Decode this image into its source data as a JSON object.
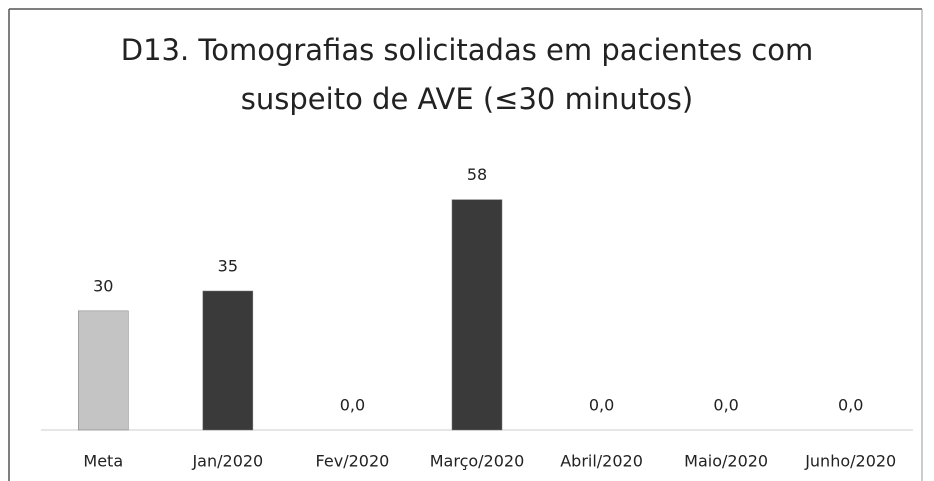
{
  "chart_data": {
    "type": "bar",
    "title": [
      "D13. Tomografias solicitadas em pacientes com",
      "suspeito de AVE (≤30 minutos)"
    ],
    "categories": [
      "Meta",
      "Jan/2020",
      "Fev/2020",
      "Março/2020",
      "Abril/2020",
      "Maio/2020",
      "Junho/2020"
    ],
    "values": [
      30,
      35,
      0,
      58,
      0,
      0,
      0
    ],
    "value_labels": [
      "30",
      "35",
      "0,0",
      "58",
      "0,0",
      "0,0",
      "0,0"
    ],
    "colors": [
      "#c4c4c4",
      "#3a3a3a",
      "#3a3a3a",
      "#3a3a3a",
      "#3a3a3a",
      "#3a3a3a",
      "#3a3a3a"
    ],
    "ylim": [
      0,
      70
    ]
  }
}
